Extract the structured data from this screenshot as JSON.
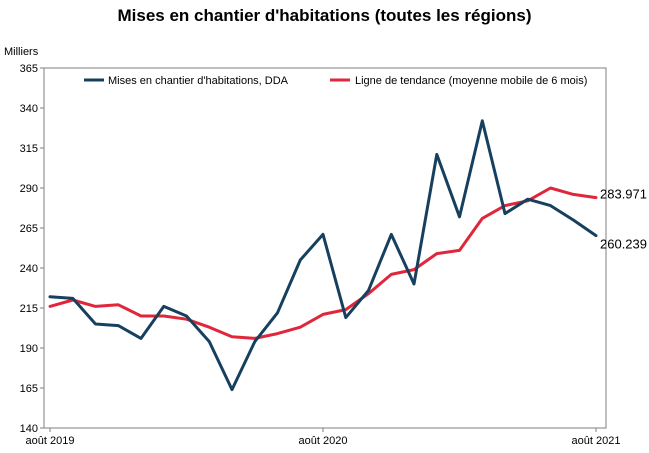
{
  "chart_data": {
    "type": "line",
    "title": "Mises en chantier d'habitations (toutes les régions)",
    "ylabel": "Milliers",
    "ylim": [
      140,
      365
    ],
    "yticks": [
      140,
      165,
      190,
      215,
      240,
      265,
      290,
      315,
      340,
      365
    ],
    "xtick_labels": [
      "août 2019",
      "août 2020",
      "août 2021"
    ],
    "x": [
      "2019-08",
      "2019-09",
      "2019-10",
      "2019-11",
      "2019-12",
      "2020-01",
      "2020-02",
      "2020-03",
      "2020-04",
      "2020-05",
      "2020-06",
      "2020-07",
      "2020-08",
      "2020-09",
      "2020-10",
      "2020-11",
      "2020-12",
      "2021-01",
      "2021-02",
      "2021-03",
      "2021-04",
      "2021-05",
      "2021-06",
      "2021-07",
      "2021-08"
    ],
    "series": [
      {
        "name": "Mises en chantier d'habitations, DDA",
        "color": "#17405f",
        "values": [
          222,
          221,
          205,
          204,
          196,
          216,
          210,
          194,
          164,
          194,
          212,
          245,
          261,
          209,
          226,
          261,
          230,
          311,
          272,
          332,
          274,
          283,
          279,
          270,
          260.239
        ]
      },
      {
        "name": "Ligne de tendance (moyenne mobile de 6 mois)",
        "color": "#e0263b",
        "values": [
          216,
          220,
          216,
          217,
          210,
          210,
          208,
          203,
          197,
          196,
          199,
          203,
          211,
          214,
          224,
          236,
          239,
          249,
          251,
          271,
          279,
          282,
          290,
          286,
          283.971
        ]
      }
    ],
    "end_labels": [
      "283.971",
      "260.239"
    ],
    "legend": "top",
    "grid": false
  }
}
